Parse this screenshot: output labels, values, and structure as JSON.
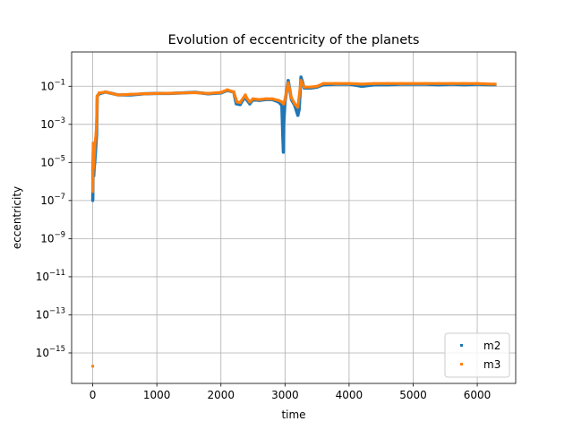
{
  "chart_data": {
    "type": "scatter",
    "title": "Evolution of eccentricity of the planets",
    "xlabel": "time",
    "ylabel": "eccentricity",
    "xlim": [
      -330,
      6600
    ],
    "ylim_exponent": [
      -16.6,
      0.8
    ],
    "yscale": "log",
    "grid": true,
    "legend_position": "lower-right",
    "x_ticks": [
      {
        "value": 0,
        "label": "0"
      },
      {
        "value": 1000,
        "label": "1000"
      },
      {
        "value": 2000,
        "label": "2000"
      },
      {
        "value": 3000,
        "label": "3000"
      },
      {
        "value": 4000,
        "label": "4000"
      },
      {
        "value": 5000,
        "label": "5000"
      },
      {
        "value": 6000,
        "label": "6000"
      }
    ],
    "y_ticks": [
      {
        "exp": -1,
        "base": "10",
        "power": "−1"
      },
      {
        "exp": -3,
        "base": "10",
        "power": "−3"
      },
      {
        "exp": -5,
        "base": "10",
        "power": "−5"
      },
      {
        "exp": -7,
        "base": "10",
        "power": "−7"
      },
      {
        "exp": -9,
        "base": "10",
        "power": "−9"
      },
      {
        "exp": -11,
        "base": "10",
        "power": "−11"
      },
      {
        "exp": -13,
        "base": "10",
        "power": "−13"
      },
      {
        "exp": -15,
        "base": "10",
        "power": "−15"
      }
    ],
    "series": [
      {
        "name": "m2",
        "color": "#1f77b4",
        "points": [
          [
            0,
            1e-07
          ],
          [
            1,
            3e-07
          ],
          [
            2,
            1e-06
          ],
          [
            3,
            3e-06
          ],
          [
            5,
            1e-05
          ],
          [
            8,
            3e-05
          ],
          [
            10,
            0.0001
          ],
          [
            15,
            2e-06
          ],
          [
            20,
            5e-06
          ],
          [
            30,
            1e-05
          ],
          [
            40,
            3e-05
          ],
          [
            50,
            0.0001
          ],
          [
            60,
            0.0003
          ],
          [
            70,
            0.03
          ],
          [
            100,
            0.04
          ],
          [
            200,
            0.05
          ],
          [
            400,
            0.035
          ],
          [
            600,
            0.035
          ],
          [
            800,
            0.04
          ],
          [
            1000,
            0.042
          ],
          [
            1200,
            0.042
          ],
          [
            1400,
            0.045
          ],
          [
            1600,
            0.048
          ],
          [
            1800,
            0.04
          ],
          [
            2000,
            0.045
          ],
          [
            2100,
            0.06
          ],
          [
            2200,
            0.05
          ],
          [
            2240,
            0.012
          ],
          [
            2300,
            0.011
          ],
          [
            2380,
            0.03
          ],
          [
            2400,
            0.02
          ],
          [
            2450,
            0.012
          ],
          [
            2500,
            0.02
          ],
          [
            2600,
            0.018
          ],
          [
            2700,
            0.02
          ],
          [
            2800,
            0.02
          ],
          [
            2900,
            0.015
          ],
          [
            2950,
            0.01
          ],
          [
            2960,
            0.001
          ],
          [
            2965,
            0.0003
          ],
          [
            2970,
            0.0001
          ],
          [
            2975,
            3.5e-05
          ],
          [
            2980,
            0.001
          ],
          [
            3000,
            0.015
          ],
          [
            3050,
            0.2
          ],
          [
            3100,
            0.02
          ],
          [
            3150,
            0.01
          ],
          [
            3200,
            0.003
          ],
          [
            3220,
            0.006
          ],
          [
            3250,
            0.3
          ],
          [
            3300,
            0.08
          ],
          [
            3400,
            0.08
          ],
          [
            3500,
            0.09
          ],
          [
            3600,
            0.12
          ],
          [
            3800,
            0.13
          ],
          [
            4000,
            0.13
          ],
          [
            4200,
            0.1
          ],
          [
            4400,
            0.12
          ],
          [
            4600,
            0.12
          ],
          [
            4800,
            0.13
          ],
          [
            5000,
            0.13
          ],
          [
            5200,
            0.13
          ],
          [
            5400,
            0.12
          ],
          [
            5600,
            0.13
          ],
          [
            5800,
            0.12
          ],
          [
            6000,
            0.13
          ],
          [
            6200,
            0.12
          ],
          [
            6280,
            0.12
          ]
        ]
      },
      {
        "name": "m3",
        "color": "#ff7f0e",
        "points": [
          [
            0,
            2e-16
          ],
          [
            0,
            3e-07
          ],
          [
            1,
            1e-06
          ],
          [
            2,
            3e-06
          ],
          [
            4,
            1e-05
          ],
          [
            6,
            3e-05
          ],
          [
            8,
            0.0001
          ],
          [
            12,
            5e-06
          ],
          [
            18,
            1e-05
          ],
          [
            25,
            3e-05
          ],
          [
            35,
            0.0001
          ],
          [
            50,
            0.0003
          ],
          [
            60,
            0.001
          ],
          [
            70,
            0.03
          ],
          [
            100,
            0.045
          ],
          [
            200,
            0.05
          ],
          [
            400,
            0.035
          ],
          [
            600,
            0.038
          ],
          [
            800,
            0.04
          ],
          [
            1000,
            0.042
          ],
          [
            1200,
            0.043
          ],
          [
            1400,
            0.045
          ],
          [
            1600,
            0.046
          ],
          [
            1800,
            0.042
          ],
          [
            2000,
            0.048
          ],
          [
            2100,
            0.065
          ],
          [
            2200,
            0.05
          ],
          [
            2250,
            0.015
          ],
          [
            2300,
            0.014
          ],
          [
            2380,
            0.035
          ],
          [
            2400,
            0.025
          ],
          [
            2450,
            0.015
          ],
          [
            2500,
            0.022
          ],
          [
            2600,
            0.02
          ],
          [
            2700,
            0.022
          ],
          [
            2800,
            0.022
          ],
          [
            2900,
            0.018
          ],
          [
            2950,
            0.015
          ],
          [
            2980,
            0.012
          ],
          [
            3000,
            0.02
          ],
          [
            3050,
            0.15
          ],
          [
            3100,
            0.025
          ],
          [
            3150,
            0.012
          ],
          [
            3200,
            0.008
          ],
          [
            3250,
            0.2
          ],
          [
            3300,
            0.09
          ],
          [
            3400,
            0.09
          ],
          [
            3500,
            0.1
          ],
          [
            3600,
            0.14
          ],
          [
            3800,
            0.14
          ],
          [
            4000,
            0.14
          ],
          [
            4200,
            0.13
          ],
          [
            4400,
            0.14
          ],
          [
            4600,
            0.14
          ],
          [
            4800,
            0.14
          ],
          [
            5000,
            0.14
          ],
          [
            5200,
            0.14
          ],
          [
            5400,
            0.14
          ],
          [
            5600,
            0.14
          ],
          [
            5800,
            0.14
          ],
          [
            6000,
            0.14
          ],
          [
            6200,
            0.13
          ],
          [
            6280,
            0.13
          ]
        ]
      }
    ]
  }
}
